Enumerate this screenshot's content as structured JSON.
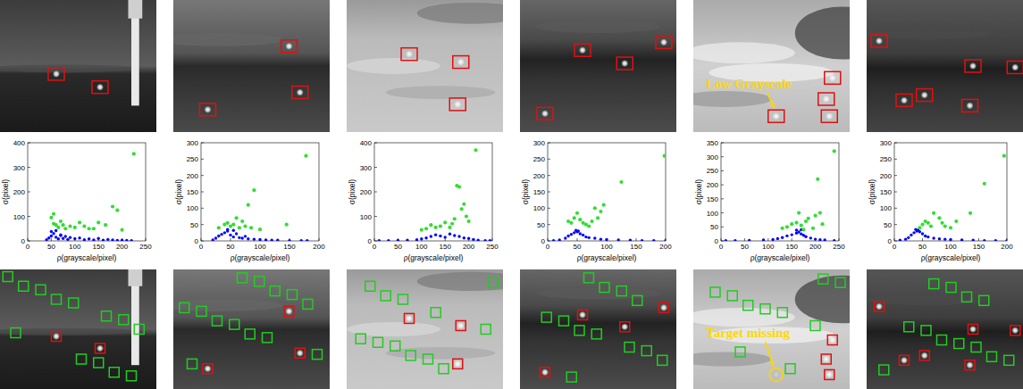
{
  "chart_data": [
    {
      "type": "scatter",
      "x_label": "ρ(grayscale/pixel)",
      "y_label": "σ(pixel)",
      "xlim": [
        0,
        250
      ],
      "ylim": [
        0,
        400
      ],
      "xticks": [
        0,
        50,
        100,
        150,
        200,
        250
      ],
      "yticks": [
        0,
        100,
        200,
        300,
        400
      ],
      "series": [
        {
          "color": "#0000ff",
          "marker": "circle",
          "x": [
            40,
            45,
            50,
            55,
            60,
            65,
            70,
            75,
            80,
            85,
            90,
            100,
            110,
            120,
            130,
            140,
            150,
            160,
            170,
            180,
            190,
            200,
            210,
            220,
            50,
            60,
            70
          ],
          "values": [
            5,
            12,
            20,
            30,
            15,
            8,
            25,
            10,
            18,
            6,
            14,
            9,
            12,
            5,
            8,
            4,
            10,
            3,
            6,
            4,
            2,
            3,
            2,
            1,
            38,
            42,
            22
          ]
        },
        {
          "color": "#33dd33",
          "marker": "circle",
          "x": [
            225,
            190,
            180,
            165,
            150,
            120,
            110,
            100,
            90,
            75,
            65,
            55,
            50,
            55,
            60,
            80,
            130,
            200,
            140,
            70
          ],
          "values": [
            355,
            125,
            140,
            65,
            75,
            60,
            75,
            55,
            60,
            65,
            55,
            110,
            95,
            70,
            65,
            50,
            50,
            45,
            50,
            80
          ]
        }
      ]
    },
    {
      "type": "scatter",
      "x_label": "ρ(grayscale/pixel)",
      "y_label": "σ(pixel)",
      "xlim": [
        0,
        200
      ],
      "ylim": [
        0,
        300
      ],
      "xticks": [
        0,
        50,
        100,
        150,
        200
      ],
      "yticks": [
        0,
        50,
        100,
        150,
        200,
        250,
        300
      ],
      "series": [
        {
          "color": "#0000ff",
          "marker": "circle",
          "x": [
            20,
            25,
            30,
            35,
            40,
            45,
            50,
            55,
            60,
            65,
            70,
            75,
            80,
            90,
            100,
            110,
            120,
            130,
            150,
            170,
            180,
            45,
            55
          ],
          "values": [
            3,
            8,
            15,
            20,
            25,
            30,
            18,
            12,
            22,
            10,
            8,
            14,
            6,
            5,
            4,
            3,
            2,
            2,
            1,
            1,
            1,
            35,
            32
          ]
        },
        {
          "color": "#33dd33",
          "marker": "circle",
          "x": [
            178,
            90,
            80,
            145,
            70,
            60,
            55,
            50,
            45,
            40,
            65,
            75,
            85,
            30,
            100
          ],
          "values": [
            260,
            155,
            110,
            50,
            60,
            70,
            50,
            45,
            55,
            50,
            40,
            45,
            40,
            40,
            35
          ]
        }
      ]
    },
    {
      "type": "scatter",
      "x_label": "ρ(grayscale/pixel)",
      "y_label": "σ(pixel)",
      "xlim": [
        0,
        250
      ],
      "ylim": [
        0,
        400
      ],
      "xticks": [
        0,
        50,
        100,
        150,
        200,
        250
      ],
      "yticks": [
        0,
        100,
        200,
        300,
        400
      ],
      "series": [
        {
          "color": "#0000ff",
          "marker": "circle",
          "x": [
            10,
            30,
            50,
            70,
            90,
            100,
            110,
            120,
            130,
            140,
            150,
            160,
            170,
            180,
            190,
            200,
            210,
            220,
            235,
            245
          ],
          "values": [
            1,
            1,
            2,
            3,
            5,
            8,
            12,
            18,
            25,
            20,
            15,
            28,
            22,
            18,
            12,
            10,
            6,
            3,
            1,
            1
          ]
        },
        {
          "color": "#33dd33",
          "marker": "circle",
          "x": [
            215,
            180,
            175,
            190,
            185,
            195,
            170,
            165,
            150,
            140,
            130,
            120,
            110,
            200,
            100,
            160
          ],
          "values": [
            370,
            220,
            225,
            150,
            130,
            100,
            90,
            70,
            75,
            60,
            55,
            65,
            50,
            80,
            45,
            55
          ]
        }
      ]
    },
    {
      "type": "scatter",
      "x_label": "ρ(grayscale/pixel)",
      "y_label": "σ(pixel)",
      "xlim": [
        0,
        200
      ],
      "ylim": [
        0,
        300
      ],
      "xticks": [
        0,
        50,
        100,
        150,
        200
      ],
      "yticks": [
        0,
        50,
        100,
        150,
        200,
        250,
        300
      ],
      "series": [
        {
          "color": "#0000ff",
          "marker": "circle",
          "x": [
            10,
            20,
            30,
            35,
            40,
            45,
            50,
            55,
            60,
            65,
            70,
            80,
            90,
            100,
            120,
            140,
            160,
            180,
            200,
            48,
            52
          ],
          "values": [
            1,
            3,
            8,
            15,
            20,
            25,
            28,
            22,
            18,
            12,
            10,
            8,
            5,
            4,
            3,
            2,
            1,
            1,
            1,
            32,
            30
          ]
        },
        {
          "color": "#33dd33",
          "marker": "circle",
          "x": [
            198,
            125,
            95,
            90,
            85,
            80,
            75,
            50,
            45,
            55,
            60,
            40,
            35,
            65,
            70
          ],
          "values": [
            260,
            180,
            110,
            90,
            70,
            100,
            60,
            85,
            70,
            65,
            55,
            55,
            60,
            50,
            45
          ]
        }
      ]
    },
    {
      "type": "scatter",
      "x_label": "ρ(grayscale/pixel)",
      "y_label": "σ(pixel)",
      "xlim": [
        0,
        250
      ],
      "ylim": [
        0,
        350
      ],
      "xticks": [
        0,
        50,
        100,
        150,
        200,
        250
      ],
      "yticks": [
        0,
        50,
        100,
        150,
        200,
        250,
        300,
        350
      ],
      "series": [
        {
          "color": "#0000ff",
          "marker": "circle",
          "x": [
            10,
            30,
            60,
            90,
            110,
            120,
            130,
            140,
            150,
            160,
            165,
            170,
            175,
            180,
            190,
            200,
            210,
            220,
            240,
            170,
            160
          ],
          "values": [
            1,
            1,
            2,
            3,
            5,
            8,
            12,
            18,
            22,
            28,
            32,
            25,
            20,
            15,
            10,
            6,
            4,
            3,
            1,
            40,
            38
          ]
        },
        {
          "color": "#33dd33",
          "marker": "circle",
          "x": [
            240,
            205,
            210,
            200,
            215,
            185,
            180,
            170,
            160,
            150,
            140,
            130,
            195,
            175,
            165
          ],
          "values": [
            320,
            220,
            100,
            90,
            60,
            80,
            70,
            55,
            65,
            60,
            50,
            45,
            45,
            40,
            100
          ]
        }
      ]
    },
    {
      "type": "scatter",
      "x_label": "ρ(grayscale/pixel)",
      "y_label": "σ(pixel)",
      "xlim": [
        0,
        200
      ],
      "ylim": [
        0,
        300
      ],
      "xticks": [
        0,
        50,
        100,
        150,
        200
      ],
      "yticks": [
        0,
        50,
        100,
        150,
        200,
        250,
        300
      ],
      "series": [
        {
          "color": "#0000ff",
          "marker": "circle",
          "x": [
            10,
            20,
            25,
            30,
            35,
            40,
            45,
            50,
            55,
            60,
            70,
            80,
            90,
            100,
            120,
            140,
            160,
            180,
            200,
            38,
            42
          ],
          "values": [
            2,
            5,
            10,
            18,
            25,
            30,
            28,
            22,
            15,
            12,
            8,
            6,
            5,
            4,
            3,
            2,
            1,
            1,
            1,
            35,
            33
          ]
        },
        {
          "color": "#33dd33",
          "marker": "circle",
          "x": [
            195,
            160,
            135,
            110,
            80,
            70,
            60,
            55,
            50,
            45,
            65,
            90,
            100,
            85
          ],
          "values": [
            260,
            175,
            85,
            60,
            70,
            85,
            55,
            60,
            50,
            40,
            45,
            45,
            40,
            55
          ]
        }
      ]
    }
  ],
  "annotations": [
    "Low Grayscale",
    "Target missing"
  ]
}
